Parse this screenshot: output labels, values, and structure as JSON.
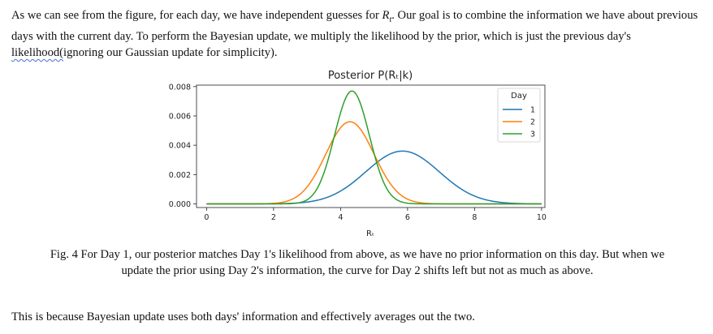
{
  "intro": {
    "p1": "As we can see from the figure, for each day, we have independent guesses for ",
    "var": "R",
    "var_sub": "t",
    "p2": ". Our goal is to combine the information we have about previous days with the current day. To perform the Bayesian update, we multiply the likelihood by the prior, which is just the previous day's ",
    "misspelled": "likelihood(",
    "p3": "ignoring our Gaussian update for simplicity)."
  },
  "figure": {
    "title": "Posterior P(Rₜ|k)",
    "xlabel": "Rₜ"
  },
  "caption": {
    "line1": "Fig. 4 For Day 1, our posterior matches Day 1's likelihood from above, as we have no prior information on this day. But when we",
    "line2": "update the prior using Day 2's information, the curve for Day 2 shifts left but not as much as above."
  },
  "closing": "This is because Bayesian update uses both days' information and effectively averages out the two.",
  "chart_data": {
    "type": "line",
    "title": "Posterior P(Rₜ|k)",
    "xlabel": "Rₜ",
    "ylabel": "",
    "xlim": [
      -0.3,
      10.1
    ],
    "ylim": [
      -0.00025,
      0.0081
    ],
    "xticks": [
      0,
      2,
      4,
      6,
      8,
      10
    ],
    "xtick_labels": [
      "0",
      "2",
      "4",
      "6",
      "8",
      "10"
    ],
    "yticks": [
      0,
      0.002,
      0.004,
      0.006,
      0.008
    ],
    "ytick_labels": [
      "0.000",
      "0.002",
      "0.004",
      "0.006",
      "0.008"
    ],
    "grid": false,
    "legend": {
      "title": "Day",
      "placement": "top-right"
    },
    "series": [
      {
        "name": "1",
        "color": "#1f77b4",
        "mean": 5.85,
        "sd": 1.1,
        "peak": 0.0036,
        "points": [
          [
            0,
            0
          ],
          [
            2,
            1e-05
          ],
          [
            3,
            0.0001
          ],
          [
            4,
            0.0009
          ],
          [
            5,
            0.0027
          ],
          [
            5.85,
            0.0036
          ],
          [
            7,
            0.0021
          ],
          [
            8,
            0.0005
          ],
          [
            9,
            6e-05
          ],
          [
            10,
            0
          ]
        ]
      },
      {
        "name": "2",
        "color": "#ff7f0e",
        "mean": 4.28,
        "sd": 0.72,
        "peak": 0.0056,
        "points": [
          [
            0,
            0
          ],
          [
            2,
            0.0001
          ],
          [
            3,
            0.0011
          ],
          [
            4,
            0.0052
          ],
          [
            4.28,
            0.0056
          ],
          [
            5,
            0.0034
          ],
          [
            6,
            0.0004
          ],
          [
            7,
            1e-05
          ],
          [
            10,
            0
          ]
        ]
      },
      {
        "name": "3",
        "color": "#2ca02c",
        "mean": 4.34,
        "sd": 0.52,
        "peak": 0.0077,
        "points": [
          [
            0,
            0
          ],
          [
            3,
            0.0002
          ],
          [
            3.5,
            0.0022
          ],
          [
            4,
            0.0063
          ],
          [
            4.34,
            0.0077
          ],
          [
            5,
            0.0034
          ],
          [
            5.5,
            0.0008
          ],
          [
            6,
            0.0001
          ],
          [
            10,
            0
          ]
        ]
      }
    ]
  }
}
